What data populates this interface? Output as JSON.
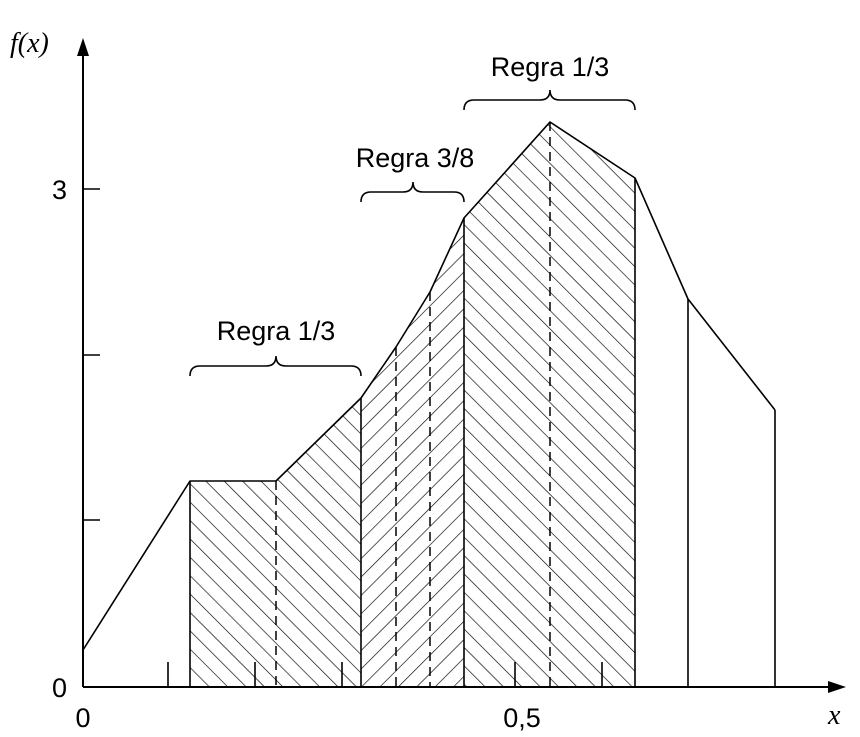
{
  "axes": {
    "y_label": "f(x)",
    "x_label": "x",
    "y_ticks": [
      "0",
      "3"
    ],
    "x_ticks": [
      "0",
      "0,5"
    ]
  },
  "segments": [
    {
      "label": "Regra 1/3"
    },
    {
      "label": "Regra 3/8"
    },
    {
      "label": "Regra 1/3"
    }
  ]
}
